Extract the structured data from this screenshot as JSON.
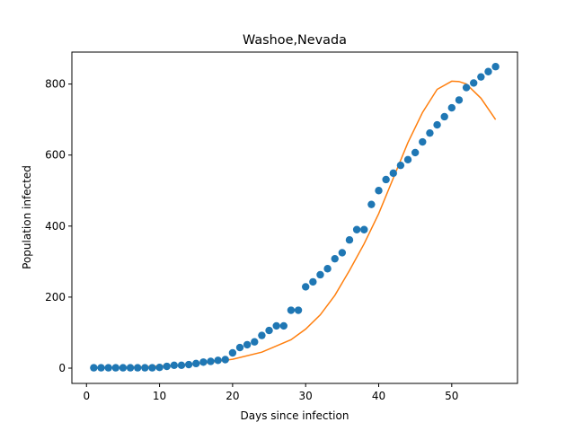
{
  "chart_data": {
    "type": "scatter",
    "title": "Washoe,Nevada",
    "xlabel": "Days since infection",
    "ylabel": "Population infected",
    "xlim": [
      -2,
      59
    ],
    "ylim": [
      -43,
      890
    ],
    "xticks": [
      0,
      10,
      20,
      30,
      40,
      50
    ],
    "yticks": [
      0,
      200,
      400,
      600,
      800
    ],
    "grid": false,
    "series": [
      {
        "type": "scatter",
        "color": "#1f77b4",
        "x": [
          1,
          2,
          3,
          4,
          5,
          6,
          7,
          8,
          9,
          10,
          11,
          12,
          13,
          14,
          15,
          16,
          17,
          18,
          19,
          20,
          21,
          22,
          23,
          24,
          25,
          26,
          27,
          28,
          29,
          30,
          31,
          32,
          33,
          34,
          35,
          36,
          37,
          38,
          39,
          40,
          41,
          42,
          43,
          44,
          45,
          46,
          47,
          48,
          49,
          50,
          51,
          52,
          53,
          54,
          55,
          56
        ],
        "y": [
          1,
          1,
          1,
          1,
          1,
          1,
          1,
          1,
          1,
          2,
          5,
          8,
          8,
          10,
          13,
          17,
          19,
          22,
          24,
          43,
          58,
          66,
          74,
          92,
          106,
          119,
          119,
          163,
          163,
          229,
          243,
          263,
          280,
          308,
          325,
          361,
          390,
          390,
          461,
          500,
          531,
          549,
          571,
          587,
          607,
          637,
          662,
          685,
          708,
          733,
          755,
          790,
          803,
          820,
          835,
          849
        ]
      },
      {
        "type": "line",
        "color": "#ff7f0e",
        "x": [
          1,
          4,
          8,
          12,
          16,
          20,
          24,
          28,
          30,
          32,
          34,
          36,
          38,
          40,
          42,
          44,
          46,
          48,
          50,
          51,
          52,
          54,
          56
        ],
        "y": [
          1,
          2,
          4,
          8,
          14,
          25,
          45,
          80,
          110,
          150,
          205,
          275,
          350,
          435,
          535,
          635,
          720,
          785,
          808,
          807,
          800,
          760,
          700
        ]
      }
    ]
  }
}
